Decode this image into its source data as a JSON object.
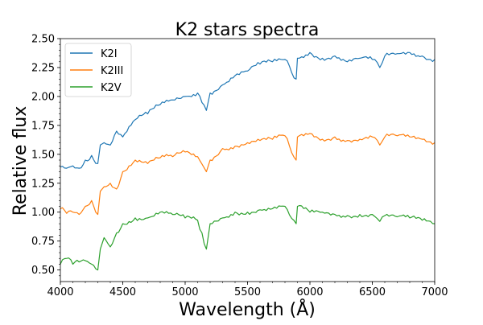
{
  "chart_data": {
    "type": "line",
    "title": "K2 stars spectra",
    "xlabel": "Wavelength (Å)",
    "ylabel": "Relative flux",
    "xlim": [
      4000,
      7000
    ],
    "ylim": [
      0.4,
      2.5
    ],
    "xticks": [
      "4000",
      "4500",
      "5000",
      "5500",
      "6000",
      "6500",
      "7000"
    ],
    "yticks": [
      "0.50",
      "0.75",
      "1.00",
      "1.25",
      "1.50",
      "1.75",
      "2.00",
      "2.25",
      "2.50"
    ],
    "grid": false,
    "legend_position": "top-left",
    "x": [
      4000,
      4050,
      4100,
      4150,
      4200,
      4250,
      4300,
      4320,
      4350,
      4400,
      4450,
      4500,
      4600,
      4700,
      4800,
      4900,
      5000,
      5100,
      5170,
      5200,
      5300,
      5400,
      5500,
      5600,
      5700,
      5800,
      5890,
      5900,
      6000,
      6100,
      6200,
      6300,
      6400,
      6500,
      6560,
      6600,
      6700,
      6800,
      6900,
      7000
    ],
    "series": [
      {
        "name": "K2I",
        "color": "#1f77b4",
        "values": [
          1.39,
          1.38,
          1.4,
          1.38,
          1.45,
          1.49,
          1.42,
          1.58,
          1.6,
          1.58,
          1.7,
          1.65,
          1.8,
          1.85,
          1.93,
          1.97,
          2.0,
          2.03,
          1.88,
          2.03,
          2.1,
          2.18,
          2.22,
          2.28,
          2.3,
          2.32,
          2.15,
          2.33,
          2.38,
          2.33,
          2.35,
          2.3,
          2.33,
          2.32,
          2.25,
          2.35,
          2.37,
          2.38,
          2.35,
          2.32
        ]
      },
      {
        "name": "K2III",
        "color": "#ff7f0e",
        "values": [
          1.03,
          0.99,
          1.0,
          0.98,
          1.05,
          1.1,
          0.98,
          1.18,
          1.22,
          1.25,
          1.2,
          1.35,
          1.45,
          1.42,
          1.47,
          1.48,
          1.52,
          1.48,
          1.35,
          1.45,
          1.55,
          1.57,
          1.6,
          1.62,
          1.63,
          1.66,
          1.45,
          1.65,
          1.68,
          1.63,
          1.65,
          1.62,
          1.63,
          1.65,
          1.58,
          1.65,
          1.66,
          1.65,
          1.63,
          1.6
        ]
      },
      {
        "name": "K2V",
        "color": "#2ca02c",
        "values": [
          0.55,
          0.6,
          0.55,
          0.57,
          0.58,
          0.55,
          0.5,
          0.68,
          0.78,
          0.7,
          0.82,
          0.9,
          0.95,
          0.95,
          1.0,
          0.98,
          0.95,
          0.93,
          0.68,
          0.9,
          0.95,
          1.0,
          1.0,
          1.02,
          1.03,
          1.05,
          0.9,
          1.05,
          1.0,
          1.0,
          0.98,
          0.97,
          0.98,
          0.98,
          0.92,
          0.97,
          0.96,
          0.95,
          0.93,
          0.9
        ]
      }
    ]
  }
}
